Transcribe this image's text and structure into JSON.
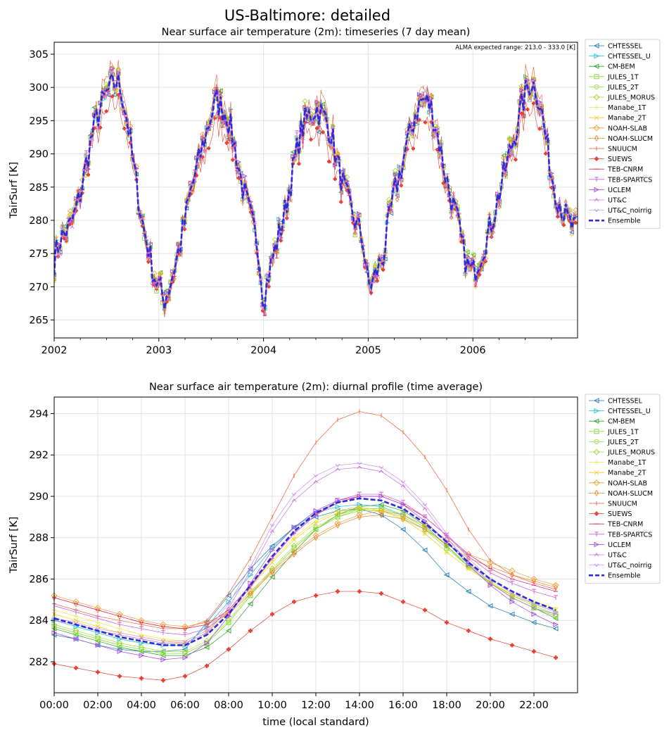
{
  "suptitle": "US-Baltimore: detailed",
  "chart_data": [
    {
      "type": "line",
      "title": "Near surface air temperature (2m): timeseries (7 day mean)",
      "annotation": "ALMA expected range: 213.0 - 333.0 [K]",
      "xlabel": "",
      "ylabel": "TairSurf [K]",
      "xlim": [
        2002.0,
        2007.0
      ],
      "ylim": [
        262.3,
        306.8
      ],
      "xticks": [
        2002,
        2003,
        2004,
        2005,
        2006
      ],
      "xtick_labels": [
        "2002",
        "2003",
        "2004",
        "2005",
        "2006"
      ],
      "yticks": [
        265,
        270,
        275,
        280,
        285,
        290,
        295,
        300,
        305
      ],
      "grid": true,
      "legend_position": "outside-right",
      "ensemble_annual_cycle": {
        "description_note": "",
        "x_years": [
          2002.0,
          2002.05,
          2002.1,
          2002.15,
          2002.2,
          2002.25,
          2002.3,
          2002.35,
          2002.4,
          2002.45,
          2002.5,
          2002.55,
          2002.6,
          2002.65,
          2002.7,
          2002.75,
          2002.8,
          2002.85,
          2002.9,
          2002.95,
          2003.0,
          2003.05,
          2003.1,
          2003.15,
          2003.2,
          2003.25,
          2003.3,
          2003.35,
          2003.4,
          2003.45,
          2003.5,
          2003.55,
          2003.6,
          2003.65,
          2003.7,
          2003.75,
          2003.8,
          2003.85,
          2003.9,
          2003.95,
          2004.0,
          2004.05,
          2004.1,
          2004.15,
          2004.2,
          2004.25,
          2004.3,
          2004.35,
          2004.4,
          2004.45,
          2004.5,
          2004.55,
          2004.6,
          2004.65,
          2004.7,
          2004.75,
          2004.8,
          2004.85,
          2004.9,
          2004.95,
          2005.0,
          2005.05,
          2005.1,
          2005.15,
          2005.2,
          2005.25,
          2005.3,
          2005.35,
          2005.4,
          2005.45,
          2005.5,
          2005.55,
          2005.6,
          2005.65,
          2005.7,
          2005.75,
          2005.8,
          2005.85,
          2005.9,
          2005.95,
          2006.0,
          2006.05,
          2006.1,
          2006.15,
          2006.2,
          2006.25,
          2006.3,
          2006.35,
          2006.4,
          2006.45,
          2006.5,
          2006.55,
          2006.6,
          2006.65,
          2006.7,
          2006.75,
          2006.8,
          2006.85,
          2006.9,
          2006.95,
          2007.0
        ],
        "values": [
          274,
          277,
          278,
          279,
          281,
          284,
          288,
          292,
          295,
          297,
          299,
          300,
          301,
          299,
          295,
          289,
          284,
          279,
          276,
          272,
          270,
          268,
          270,
          273,
          276,
          280,
          284,
          287,
          290,
          293,
          296,
          298,
          297,
          296,
          293,
          289,
          285,
          282,
          279,
          276,
          268,
          272,
          275,
          278,
          281,
          285,
          289,
          293,
          295,
          296,
          297,
          296,
          295,
          293,
          289,
          286,
          283,
          281,
          279,
          277,
          270,
          271,
          273,
          275,
          280,
          284,
          287,
          290,
          293,
          296,
          298,
          298,
          297,
          294,
          290,
          286,
          283,
          280,
          276,
          273,
          272,
          274,
          276,
          278,
          281,
          284,
          287,
          290,
          293,
          296,
          299,
          301,
          300,
          297,
          292,
          287,
          284,
          282,
          280,
          279,
          278
        ]
      },
      "series": [
        {
          "name": "CHTESSEL",
          "color": "#1f77b4",
          "marker": "tri-left"
        },
        {
          "name": "CHTESSEL_U",
          "color": "#17becf",
          "marker": "tri-right"
        },
        {
          "name": "CM-BEM",
          "color": "#2ca02c",
          "marker": "tri-left"
        },
        {
          "name": "JULES_1T",
          "color": "#7fd83a",
          "marker": "square"
        },
        {
          "name": "JULES_2T",
          "color": "#8fdc3c",
          "marker": "circle"
        },
        {
          "name": "JULES_MORUS",
          "color": "#9be03e",
          "marker": "diamond"
        },
        {
          "name": "Manabe_1T",
          "color": "#e8e83a",
          "marker": "plus"
        },
        {
          "name": "Manabe_2T",
          "color": "#f0d020",
          "marker": "x"
        },
        {
          "name": "NOAH-SLAB",
          "color": "#f0a030",
          "marker": "diamond"
        },
        {
          "name": "NOAH-SLUCM",
          "color": "#e88830",
          "marker": "thin-diamond"
        },
        {
          "name": "SNUUCM",
          "color": "#f06030",
          "marker": "vline"
        },
        {
          "name": "SUEWS",
          "color": "#e84030",
          "marker": "plus-filled"
        },
        {
          "name": "TEB-CNRM",
          "color": "#e02080",
          "marker": "hline"
        },
        {
          "name": "TEB-SPARTCS",
          "color": "#d050d0",
          "marker": "tri-down"
        },
        {
          "name": "UCLEM",
          "color": "#a040e0",
          "marker": "tri-right-open"
        },
        {
          "name": "UT&C",
          "color": "#c070e0",
          "marker": "caret-up"
        },
        {
          "name": "UT&C_noirrig",
          "color": "#d090f0",
          "marker": "caret-down"
        },
        {
          "name": "Ensemble",
          "color": "#2b2bdd",
          "marker": "dashed"
        }
      ]
    },
    {
      "type": "line",
      "title": "Near surface air temperature (2m): diurnal profile (time average)",
      "xlabel": "time (local standard)",
      "ylabel": "TairSurf [K]",
      "xlim": [
        0,
        24
      ],
      "ylim": [
        280.5,
        294.8
      ],
      "xticks": [
        0,
        2,
        4,
        6,
        8,
        10,
        12,
        14,
        16,
        18,
        20,
        22
      ],
      "xtick_labels": [
        "00:00",
        "02:00",
        "04:00",
        "06:00",
        "08:00",
        "10:00",
        "12:00",
        "14:00",
        "16:00",
        "18:00",
        "20:00",
        "22:00"
      ],
      "yticks": [
        282,
        284,
        286,
        288,
        290,
        292,
        294
      ],
      "grid": true,
      "legend_position": "outside-right",
      "x": [
        0,
        1,
        2,
        3,
        4,
        5,
        6,
        7,
        8,
        9,
        10,
        11,
        12,
        13,
        14,
        15,
        16,
        17,
        18,
        19,
        20,
        21,
        22,
        23
      ],
      "series": [
        {
          "name": "CHTESSEL",
          "color": "#1f77b4",
          "marker": "tri-left",
          "values": [
            283.3,
            283.1,
            282.8,
            282.6,
            282.5,
            282.5,
            282.6,
            283.9,
            285.2,
            286.5,
            287.6,
            288.5,
            289.0,
            289.3,
            289.4,
            289.1,
            288.4,
            287.4,
            286.2,
            285.4,
            284.7,
            284.3,
            283.9,
            283.6
          ]
        },
        {
          "name": "CHTESSEL_U",
          "color": "#17becf",
          "marker": "tri-right",
          "values": [
            284.0,
            283.7,
            283.4,
            283.1,
            282.9,
            282.8,
            282.8,
            283.7,
            284.9,
            286.2,
            287.5,
            288.5,
            289.2,
            289.5,
            289.6,
            289.5,
            289.1,
            288.5,
            287.6,
            286.6,
            285.8,
            285.2,
            284.8,
            284.4
          ]
        },
        {
          "name": "CM-BEM",
          "color": "#2ca02c",
          "marker": "tri-left",
          "values": [
            283.6,
            283.3,
            283.0,
            282.7,
            282.5,
            282.3,
            282.3,
            282.7,
            283.5,
            284.8,
            286.1,
            287.3,
            288.4,
            289.1,
            289.5,
            289.6,
            289.3,
            288.6,
            287.6,
            286.6,
            285.8,
            285.1,
            284.6,
            284.1
          ]
        },
        {
          "name": "JULES_1T",
          "color": "#7fd83a",
          "marker": "square",
          "values": [
            283.7,
            283.4,
            283.1,
            282.8,
            282.6,
            282.4,
            282.4,
            282.9,
            283.9,
            285.2,
            286.4,
            287.5,
            288.4,
            289.0,
            289.3,
            289.3,
            289.0,
            288.4,
            287.5,
            286.6,
            285.8,
            285.1,
            284.6,
            284.2
          ]
        },
        {
          "name": "JULES_2T",
          "color": "#8fdc3c",
          "marker": "circle",
          "values": [
            283.7,
            283.4,
            283.1,
            282.8,
            282.6,
            282.4,
            282.4,
            282.9,
            283.9,
            285.2,
            286.4,
            287.5,
            288.4,
            289.0,
            289.4,
            289.4,
            289.1,
            288.5,
            287.6,
            286.6,
            285.8,
            285.1,
            284.6,
            284.2
          ]
        },
        {
          "name": "JULES_MORUS",
          "color": "#9be03e",
          "marker": "diamond",
          "values": [
            283.8,
            283.5,
            283.2,
            282.9,
            282.7,
            282.5,
            282.5,
            283.0,
            284.0,
            285.3,
            286.5,
            287.6,
            288.5,
            289.1,
            289.4,
            289.4,
            289.1,
            288.5,
            287.6,
            286.7,
            285.9,
            285.2,
            284.7,
            284.3
          ]
        },
        {
          "name": "Manabe_1T",
          "color": "#e8e83a",
          "marker": "plus",
          "values": [
            284.5,
            284.2,
            283.9,
            283.6,
            283.3,
            283.1,
            283.0,
            283.5,
            284.5,
            285.7,
            286.9,
            288.0,
            288.8,
            289.3,
            289.5,
            289.3,
            288.9,
            288.2,
            287.3,
            286.5,
            285.8,
            285.3,
            284.9,
            284.6
          ]
        },
        {
          "name": "Manabe_2T",
          "color": "#f0d020",
          "marker": "x",
          "values": [
            284.3,
            284.0,
            283.7,
            283.4,
            283.2,
            283.0,
            282.9,
            283.4,
            284.4,
            285.6,
            286.8,
            287.9,
            288.7,
            289.2,
            289.4,
            289.3,
            288.9,
            288.2,
            287.3,
            286.5,
            285.8,
            285.2,
            284.8,
            284.5
          ]
        },
        {
          "name": "NOAH-SLAB",
          "color": "#f0a030",
          "marker": "diamond",
          "values": [
            285.2,
            284.9,
            284.6,
            284.3,
            284.0,
            283.8,
            283.7,
            283.9,
            284.4,
            285.4,
            286.4,
            287.3,
            288.1,
            288.7,
            289.1,
            289.3,
            289.1,
            288.6,
            287.9,
            287.2,
            286.8,
            286.4,
            286.0,
            285.7
          ]
        },
        {
          "name": "NOAH-SLUCM",
          "color": "#e88830",
          "marker": "thin-diamond",
          "values": [
            285.1,
            284.8,
            284.5,
            284.2,
            283.9,
            283.7,
            283.6,
            283.8,
            284.3,
            285.3,
            286.3,
            287.2,
            288.0,
            288.6,
            289.0,
            289.1,
            288.9,
            288.4,
            287.7,
            287.0,
            286.6,
            286.2,
            285.9,
            285.6
          ]
        },
        {
          "name": "SNUUCM",
          "color": "#f06030",
          "marker": "vline",
          "values": [
            284.8,
            284.5,
            284.2,
            284.0,
            283.8,
            283.6,
            283.6,
            284.0,
            285.3,
            287.0,
            289.0,
            291.0,
            292.6,
            293.7,
            294.1,
            293.9,
            293.1,
            291.9,
            290.3,
            288.4,
            286.9,
            286.2,
            285.8,
            285.5
          ]
        },
        {
          "name": "SUEWS",
          "color": "#e84030",
          "marker": "plus-filled",
          "values": [
            281.9,
            281.7,
            281.5,
            281.3,
            281.2,
            281.1,
            281.3,
            281.8,
            282.6,
            283.5,
            284.3,
            284.9,
            285.2,
            285.4,
            285.4,
            285.3,
            284.9,
            284.5,
            283.9,
            283.5,
            283.1,
            282.8,
            282.5,
            282.2
          ]
        },
        {
          "name": "TEB-CNRM",
          "color": "#e02080",
          "marker": "hline",
          "values": [
            285.1,
            284.8,
            284.5,
            284.2,
            283.9,
            283.7,
            283.6,
            283.8,
            284.5,
            285.7,
            287.0,
            288.2,
            289.1,
            289.7,
            290.0,
            290.0,
            289.6,
            289.0,
            288.1,
            287.2,
            286.5,
            286.0,
            285.7,
            285.4
          ]
        },
        {
          "name": "TEB-SPARTCS",
          "color": "#d050d0",
          "marker": "tri-down",
          "values": [
            284.7,
            284.4,
            284.1,
            283.8,
            283.6,
            283.4,
            283.3,
            283.6,
            284.4,
            285.6,
            287.0,
            288.2,
            289.1,
            289.8,
            290.1,
            290.1,
            289.7,
            289.0,
            288.1,
            287.1,
            286.3,
            285.8,
            285.4,
            285.1
          ]
        },
        {
          "name": "UCLEM",
          "color": "#a040e0",
          "marker": "tri-right-open",
          "values": [
            283.4,
            283.1,
            282.8,
            282.5,
            282.3,
            282.1,
            282.2,
            282.9,
            284.2,
            285.8,
            287.4,
            288.5,
            289.3,
            289.8,
            290.0,
            290.0,
            289.6,
            288.8,
            287.8,
            286.7,
            285.7,
            284.9,
            284.3,
            283.8
          ]
        },
        {
          "name": "UT&C",
          "color": "#c070e0",
          "marker": "caret-up",
          "values": [
            284.0,
            283.8,
            283.5,
            283.3,
            283.1,
            282.9,
            282.9,
            283.4,
            284.6,
            286.4,
            288.3,
            289.8,
            290.7,
            291.3,
            291.4,
            291.2,
            290.5,
            289.4,
            288.0,
            286.8,
            285.8,
            285.1,
            284.6,
            284.3
          ]
        },
        {
          "name": "UT&C_noirrig",
          "color": "#d090f0",
          "marker": "caret-down",
          "values": [
            284.1,
            283.9,
            283.6,
            283.4,
            283.2,
            283.0,
            283.0,
            283.5,
            284.8,
            286.6,
            288.6,
            290.1,
            291.0,
            291.5,
            291.6,
            291.4,
            290.7,
            289.6,
            288.2,
            287.0,
            286.0,
            285.3,
            284.8,
            284.4
          ]
        },
        {
          "name": "Ensemble",
          "color": "#2b2bdd",
          "marker": "dashed",
          "values": [
            284.1,
            283.8,
            283.5,
            283.2,
            283.0,
            282.8,
            282.8,
            283.3,
            284.3,
            285.7,
            287.1,
            288.3,
            289.2,
            289.7,
            289.9,
            289.8,
            289.4,
            288.7,
            287.8,
            286.8,
            286.0,
            285.4,
            284.9,
            284.5
          ]
        }
      ]
    }
  ]
}
